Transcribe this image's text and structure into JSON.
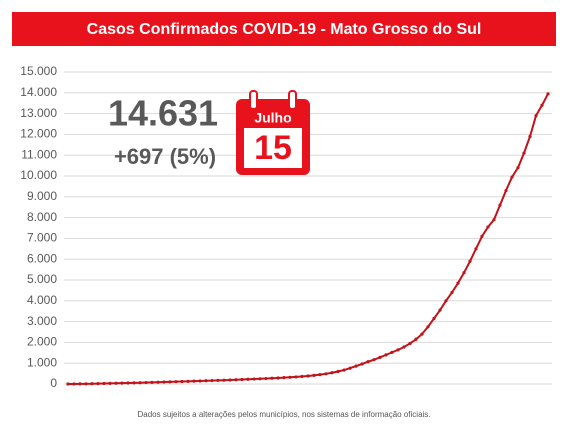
{
  "chart_data": {
    "type": "line",
    "title": "Casos Confirmados COVID-19 - Mato Grosso do Sul",
    "total": "14.631",
    "change": "+697 (5%)",
    "month": "Julho",
    "day": "15",
    "footnote": "Dados sujeitos a alterações pelos municípios, nos sistemas de informação oficiais.",
    "color": "#c0141b",
    "grid": true,
    "ylim": [
      0,
      15000
    ],
    "yticks": [
      0,
      {
        "value": 1000,
        "label": "1.000"
      },
      {
        "value": 2000,
        "label": "2.000"
      },
      {
        "value": 3000,
        "label": "3.000"
      },
      {
        "value": 4000,
        "label": "4.000"
      },
      {
        "value": 5000,
        "label": "5.000"
      },
      {
        "value": 6000,
        "label": "6.000"
      },
      {
        "value": 7000,
        "label": "7.000"
      },
      {
        "value": 8000,
        "label": "8.000"
      },
      {
        "value": 9000,
        "label": "9.000"
      },
      {
        "value": 10000,
        "label": "10.000"
      },
      {
        "value": 11000,
        "label": "11.000"
      },
      {
        "value": 12000,
        "label": "12.000"
      },
      {
        "value": 13000,
        "label": "13.000"
      },
      {
        "value": 14000,
        "label": "14.000"
      },
      {
        "value": 15000,
        "label": "15.000"
      }
    ],
    "values": [
      1,
      2,
      5,
      9,
      14,
      20,
      25,
      30,
      36,
      42,
      48,
      55,
      62,
      70,
      78,
      86,
      95,
      104,
      112,
      120,
      129,
      138,
      147,
      155,
      164,
      173,
      183,
      194,
      205,
      216,
      227,
      238,
      250,
      262,
      275,
      290,
      305,
      322,
      340,
      360,
      385,
      415,
      450,
      490,
      540,
      600,
      670,
      760,
      860,
      960,
      1070,
      1170,
      1280,
      1400,
      1520,
      1640,
      1780,
      1950,
      2150,
      2400,
      2750,
      3150,
      3550,
      4000,
      4400,
      4850,
      5350,
      5900,
      6500,
      7100,
      7550,
      7900,
      8600,
      9300,
      9950,
      10400,
      11100,
      11900,
      12900,
      13400,
      13950
    ]
  }
}
